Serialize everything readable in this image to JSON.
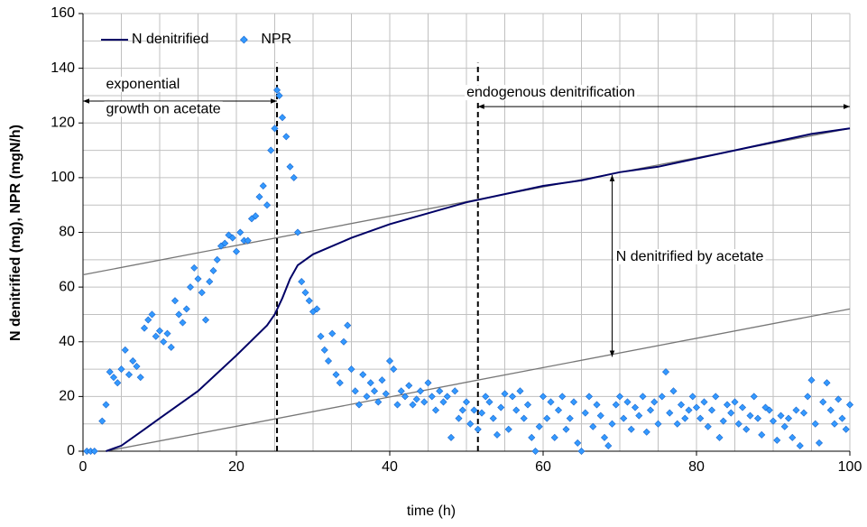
{
  "chart_data": {
    "type": "line_scatter",
    "xlabel": "time (h)",
    "ylabel": "N denitrified (mg), NPR (mgN/h)",
    "xlim": [
      0,
      100
    ],
    "ylim": [
      0,
      160
    ],
    "xticks": [
      0,
      20,
      40,
      60,
      80,
      100
    ],
    "yticks": [
      0,
      20,
      40,
      60,
      80,
      100,
      120,
      140,
      160
    ],
    "xgrid": [
      5,
      10,
      15,
      20,
      25,
      30,
      35,
      40,
      45,
      50,
      55,
      60,
      65,
      70,
      75,
      80,
      85,
      90,
      95,
      100
    ],
    "ygrid": [
      10,
      20,
      30,
      40,
      50,
      60,
      70,
      80,
      90,
      100,
      110,
      120,
      130,
      140,
      150,
      160
    ],
    "grid": true,
    "legend": "top-left",
    "series": [
      {
        "name": "N denitrified",
        "color": "#000066",
        "kind": "line",
        "x": [
          3,
          5,
          8,
          10,
          15,
          20,
          24,
          25,
          26,
          27,
          28,
          30,
          35,
          40,
          45,
          50,
          55,
          60,
          65,
          70,
          75,
          80,
          85,
          90,
          95,
          100
        ],
        "values": [
          0,
          2,
          8,
          12,
          22,
          35,
          46,
          50,
          56,
          63,
          68,
          72,
          78,
          83,
          87,
          91,
          94,
          97,
          99,
          102,
          104,
          107,
          110,
          113,
          116,
          118
        ]
      },
      {
        "name": "NPR",
        "color": "#3399ff",
        "kind": "scatter",
        "x": [
          0.5,
          1,
          1.5,
          2.5,
          3,
          3.5,
          4,
          4.5,
          5,
          5.5,
          6,
          6.5,
          7,
          7.5,
          8,
          8.5,
          9,
          9.5,
          10,
          10.5,
          11,
          11.5,
          12,
          12.5,
          13,
          13.5,
          14,
          14.5,
          15,
          15.5,
          16,
          16.5,
          17,
          17.5,
          18,
          18.5,
          19,
          19.5,
          20,
          20.5,
          21,
          21.5,
          22,
          22.5,
          23,
          23.5,
          24,
          24.5,
          25,
          25.3,
          25.6,
          26,
          26.5,
          27,
          27.5,
          28,
          28.5,
          29,
          29.5,
          30,
          30.5,
          31,
          31.5,
          32,
          32.5,
          33,
          33.5,
          34,
          34.5,
          35,
          35.5,
          36,
          36.5,
          37,
          37.5,
          38,
          38.5,
          39,
          39.5,
          40,
          40.5,
          41,
          41.5,
          42,
          42.5,
          43,
          43.5,
          44,
          44.5,
          45,
          45.5,
          46,
          46.5,
          47,
          47.5,
          48,
          48.5,
          49,
          49.5,
          50,
          50.5,
          51,
          51.5,
          52,
          52.5,
          53,
          53.5,
          54,
          54.5,
          55,
          55.5,
          56,
          56.5,
          57,
          57.5,
          58,
          58.5,
          59,
          59.5,
          60,
          60.5,
          61,
          61.5,
          62,
          62.5,
          63,
          63.5,
          64,
          64.5,
          65,
          65.5,
          66,
          66.5,
          67,
          67.5,
          68,
          68.5,
          69,
          69.5,
          70,
          70.5,
          71,
          71.5,
          72,
          72.5,
          73,
          73.5,
          74,
          74.5,
          75,
          75.5,
          76,
          76.5,
          77,
          77.5,
          78,
          78.5,
          79,
          79.5,
          80,
          80.5,
          81,
          81.5,
          82,
          82.5,
          83,
          83.5,
          84,
          84.5,
          85,
          85.5,
          86,
          86.5,
          87,
          87.5,
          88,
          88.5,
          89,
          89.5,
          90,
          90.5,
          91,
          91.5,
          92,
          92.5,
          93,
          93.5,
          94,
          94.5,
          95,
          95.5,
          96,
          96.5,
          97,
          97.5,
          98,
          98.5,
          99,
          99.5,
          100
        ],
        "values": [
          0,
          0,
          0,
          11,
          17,
          29,
          27,
          25,
          30,
          37,
          28,
          33,
          31,
          27,
          45,
          48,
          50,
          42,
          44,
          40,
          43,
          38,
          55,
          50,
          47,
          52,
          60,
          67,
          63,
          58,
          48,
          62,
          66,
          70,
          75,
          76,
          79,
          78,
          73,
          80,
          77,
          77,
          85,
          86,
          93,
          97,
          90,
          110,
          118,
          132,
          130,
          122,
          115,
          104,
          100,
          80,
          62,
          58,
          55,
          51,
          52,
          42,
          37,
          33,
          43,
          28,
          25,
          40,
          46,
          30,
          22,
          17,
          28,
          20,
          25,
          22,
          18,
          26,
          21,
          33,
          30,
          17,
          22,
          20,
          24,
          17,
          19,
          22,
          18,
          25,
          20,
          15,
          22,
          18,
          20,
          5,
          22,
          12,
          15,
          18,
          10,
          15,
          8,
          14,
          20,
          18,
          12,
          6,
          16,
          21,
          8,
          20,
          15,
          22,
          12,
          17,
          5,
          0,
          9,
          20,
          12,
          18,
          5,
          15,
          20,
          8,
          12,
          18,
          3,
          0,
          14,
          20,
          9,
          17,
          13,
          5,
          2,
          10,
          17,
          20,
          12,
          18,
          8,
          16,
          13,
          20,
          7,
          15,
          18,
          10,
          20,
          29,
          14,
          22,
          10,
          17,
          12,
          15,
          20,
          16,
          12,
          18,
          9,
          15,
          20,
          5,
          11,
          17,
          14,
          18,
          10,
          16,
          8,
          13,
          20,
          12,
          6,
          16,
          15,
          11,
          4,
          13,
          9,
          12,
          5,
          15,
          2,
          14,
          20,
          26,
          10,
          3,
          18,
          25,
          15,
          10,
          19,
          12,
          8,
          17
        ]
      }
    ],
    "lines": [
      {
        "x1": 0,
        "y1": 64.5,
        "x2": 100,
        "y2": 118,
        "style": "reference"
      },
      {
        "x1": 3,
        "y1": 0,
        "x2": 100,
        "y2": 52,
        "style": "reference"
      },
      {
        "x1": 25.3,
        "y1": 0,
        "x2": 25.3,
        "y2": 142,
        "style": "dashed"
      },
      {
        "x1": 51.5,
        "y1": 0,
        "x2": 51.5,
        "y2": 142,
        "style": "dashed"
      },
      {
        "x1": 0,
        "y1": 128,
        "x2": 25.3,
        "y2": 128,
        "style": "arrow"
      },
      {
        "x1": 51.5,
        "y1": 126,
        "x2": 100,
        "y2": 126,
        "style": "arrow"
      },
      {
        "x1": 69,
        "y1": 34.5,
        "x2": 69,
        "y2": 101,
        "style": "arrow"
      }
    ],
    "annotations": [
      {
        "text": "exponential",
        "x": 3,
        "y": 134
      },
      {
        "text": "growth on acetate",
        "x": 3,
        "y": 125
      },
      {
        "text": "endogenous denitrification",
        "x": 61,
        "y": 131
      },
      {
        "text": "N denitrified by acetate",
        "x": 69.5,
        "y": 71
      }
    ]
  }
}
